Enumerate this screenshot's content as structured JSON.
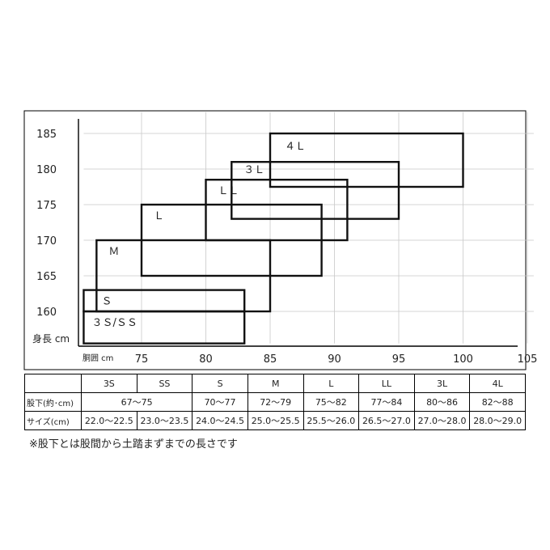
{
  "chart_data": {
    "type": "size-chart",
    "xlabel": "胴囲 cm",
    "ylabel": "身長 cm",
    "x_ticks": [
      75,
      80,
      85,
      90,
      95,
      100,
      105
    ],
    "y_ticks": [
      160,
      165,
      170,
      175,
      180,
      185
    ],
    "xlim": [
      70.5,
      105.5
    ],
    "ylim": [
      155.5,
      188
    ],
    "grid": true,
    "boxes": [
      {
        "label": "３Ｓ/ＳＳ",
        "x": [
          70.5,
          83
        ],
        "y": [
          155.5,
          160
        ]
      },
      {
        "label": "Ｓ",
        "x": [
          70.5,
          83
        ],
        "y": [
          160,
          163
        ]
      },
      {
        "label": "Ｍ",
        "x": [
          71.5,
          85
        ],
        "y": [
          160,
          170
        ]
      },
      {
        "label": "Ｌ",
        "x": [
          75,
          89
        ],
        "y": [
          165,
          175
        ]
      },
      {
        "label": "ＬＬ",
        "x": [
          80,
          91
        ],
        "y": [
          170,
          178.5
        ]
      },
      {
        "label": "３Ｌ",
        "x": [
          82,
          95
        ],
        "y": [
          173,
          181
        ]
      },
      {
        "label": "４Ｌ",
        "x": [
          85,
          100
        ],
        "y": [
          177.5,
          185
        ]
      }
    ]
  },
  "size_table": {
    "headers": [
      "3S",
      "SS",
      "S",
      "M",
      "L",
      "LL",
      "3L",
      "4L"
    ],
    "inseam_label": "股下(約･cm)",
    "inseam": [
      "67～75",
      "70～77",
      "72～79",
      "75～82",
      "77～84",
      "80～86",
      "82～88"
    ],
    "shoe_label": "サイズ(cm)",
    "shoe": [
      "22.0～22.5",
      "23.0～23.5",
      "24.0～24.5",
      "25.0～25.5",
      "25.5～26.0",
      "26.5～27.0",
      "27.0～28.0",
      "28.0～29.0"
    ]
  },
  "note": "※股下とは股間から土踏まずまでの長さです"
}
